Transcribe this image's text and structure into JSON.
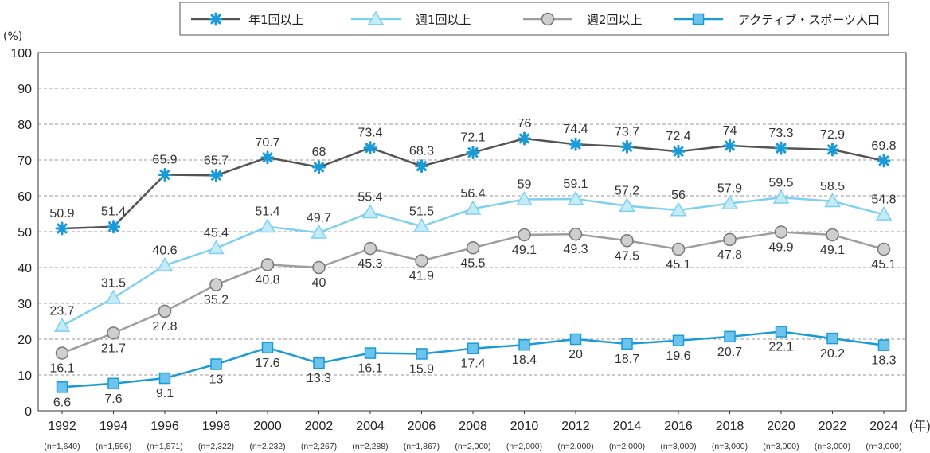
{
  "chart_data": {
    "type": "line",
    "y_unit_label": "(%)",
    "x_unit_label": "(年)",
    "ylim": [
      0,
      100
    ],
    "yticks": [
      0,
      10,
      20,
      30,
      40,
      50,
      60,
      70,
      80,
      90,
      100
    ],
    "grid": true,
    "legend_position": "top-right",
    "categories": [
      "1992",
      "1994",
      "1996",
      "1998",
      "2000",
      "2002",
      "2004",
      "2006",
      "2008",
      "2010",
      "2012",
      "2014",
      "2016",
      "2018",
      "2020",
      "2022",
      "2024"
    ],
    "sample_sizes": [
      "(n=1,640)",
      "(n=1,596)",
      "(n=1,571)",
      "(n=2,322)",
      "(n=2,232)",
      "(n=2,267)",
      "(n=2,288)",
      "(n=1,867)",
      "(n=2,000)",
      "(n=2,000)",
      "(n=2,000)",
      "(n=2,000)",
      "(n=3,000)",
      "(n=3,000)",
      "(n=3,000)",
      "(n=3,000)",
      "(n=3,000)"
    ],
    "series": [
      {
        "name": "年1回以上",
        "color": "#555555",
        "marker": "asterisk",
        "marker_color": "#1a9ad6",
        "label_position": "above",
        "values": [
          50.9,
          51.4,
          65.9,
          65.7,
          70.7,
          68.0,
          73.4,
          68.3,
          72.1,
          76.0,
          74.4,
          73.7,
          72.4,
          74.0,
          73.3,
          72.9,
          69.8
        ]
      },
      {
        "name": "週1回以上",
        "color": "#7fd0ef",
        "marker": "triangle",
        "marker_color": "#c4ebf8",
        "label_position": "above",
        "values": [
          23.7,
          31.5,
          40.6,
          45.4,
          51.4,
          49.7,
          55.4,
          51.5,
          56.4,
          59.0,
          59.1,
          57.2,
          56.0,
          57.9,
          59.5,
          58.5,
          54.8
        ]
      },
      {
        "name": "週2回以上",
        "color": "#9e9e9e",
        "marker": "circle",
        "marker_color": "#cfcfcf",
        "label_position": "below",
        "values": [
          16.1,
          21.7,
          27.8,
          35.2,
          40.8,
          40.0,
          45.3,
          41.9,
          45.5,
          49.1,
          49.3,
          47.5,
          45.1,
          47.8,
          49.9,
          49.1,
          45.1
        ]
      },
      {
        "name": "アクティブ・スポーツ人口",
        "color": "#1a9ad6",
        "marker": "square",
        "marker_color": "#6cc4ec",
        "label_position": "below",
        "values": [
          6.6,
          7.6,
          9.1,
          13.0,
          17.6,
          13.3,
          16.1,
          15.9,
          17.4,
          18.4,
          20.0,
          18.7,
          19.6,
          20.7,
          22.1,
          20.2,
          18.3
        ]
      }
    ]
  }
}
